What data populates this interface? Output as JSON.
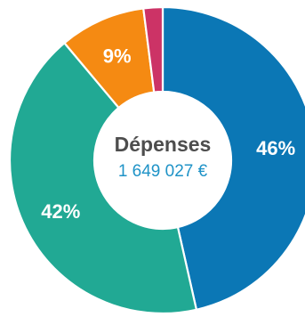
{
  "chart_data": {
    "type": "pie",
    "donut": true,
    "title": "Dépenses",
    "total_label": "1 649 027 €",
    "slices": [
      {
        "label": "46%",
        "value": 46,
        "color": "#0b77b5"
      },
      {
        "label": "42%",
        "value": 42,
        "color": "#21a994"
      },
      {
        "label": "9%",
        "value": 9,
        "color": "#f58a12"
      },
      {
        "label": "",
        "value": 2,
        "color": "#cc3366"
      }
    ]
  }
}
